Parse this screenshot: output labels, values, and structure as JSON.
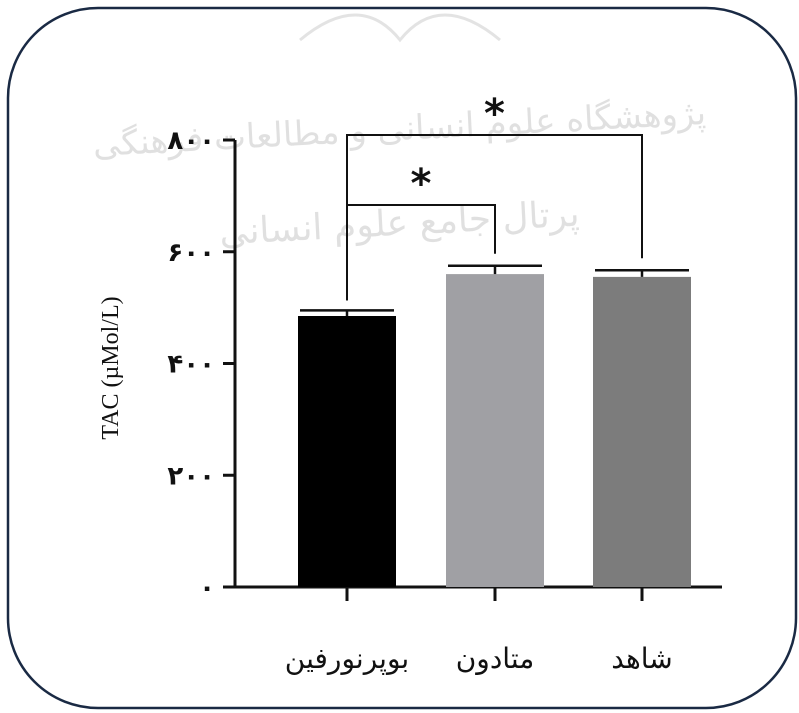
{
  "chart_data": {
    "type": "bar",
    "categories": [
      "بوپرنورفین",
      "متادون",
      "شاهد"
    ],
    "values": [
      485,
      560,
      555
    ],
    "errors": [
      10,
      15,
      12
    ],
    "ylabel": "TAC (µMol/L)",
    "xlabel": "",
    "ylim": [
      0,
      800
    ],
    "yticks": [
      0,
      200,
      400,
      600,
      800
    ],
    "ytick_labels": [
      "۰",
      "۲۰۰",
      "۴۰۰",
      "۶۰۰",
      "۸۰۰"
    ],
    "colors": [
      "#000000",
      "#a0a0a4",
      "#7c7c7c"
    ],
    "significance": [
      {
        "from": 0,
        "to": 1,
        "label": "*"
      },
      {
        "from": 0,
        "to": 2,
        "label": "*"
      }
    ],
    "grid": false,
    "legend": "none"
  },
  "watermark": {
    "line1": "پژوهشگاه علوم انسانی و مطالعات فرهنگی",
    "line2": "پرتال جامع علوم انسانی"
  }
}
